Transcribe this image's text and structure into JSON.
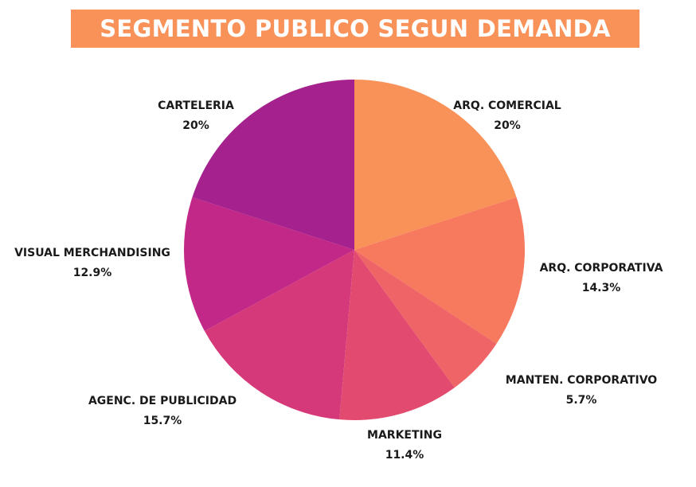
{
  "title": "SEGMENTO PUBLICO SEGUN DEMANDA",
  "colors": {
    "banner": "#f99259",
    "banner_text": "#ffffff",
    "label_text": "#1a1a1a"
  },
  "chart_data": {
    "type": "pie",
    "title": "SEGMENTO PUBLICO SEGUN DEMANDA",
    "start_angle_deg": 0,
    "direction": "clockwise",
    "slices": [
      {
        "label": "ARQ. COMERCIAL",
        "value": 20,
        "value_label": "20%",
        "color": "#f99259"
      },
      {
        "label": "ARQ. CORPORATIVA",
        "value": 14.3,
        "value_label": "14.3%",
        "color": "#f87a5e"
      },
      {
        "label": "MANTEN. CORPORATIVO",
        "value": 5.7,
        "value_label": "5.7%",
        "color": "#ef6466"
      },
      {
        "label": "MARKETING",
        "value": 11.4,
        "value_label": "11.4%",
        "color": "#e34a6f"
      },
      {
        "label": "AGENC. DE PUBLICIDAD",
        "value": 15.7,
        "value_label": "15.7%",
        "color": "#d63979"
      },
      {
        "label": "VISUAL MERCHANDISING",
        "value": 12.9,
        "value_label": "12.9%",
        "color": "#c22887"
      },
      {
        "label": "CARTELERIA",
        "value": 20,
        "value_label": "20%",
        "color": "#a5218d"
      }
    ]
  }
}
